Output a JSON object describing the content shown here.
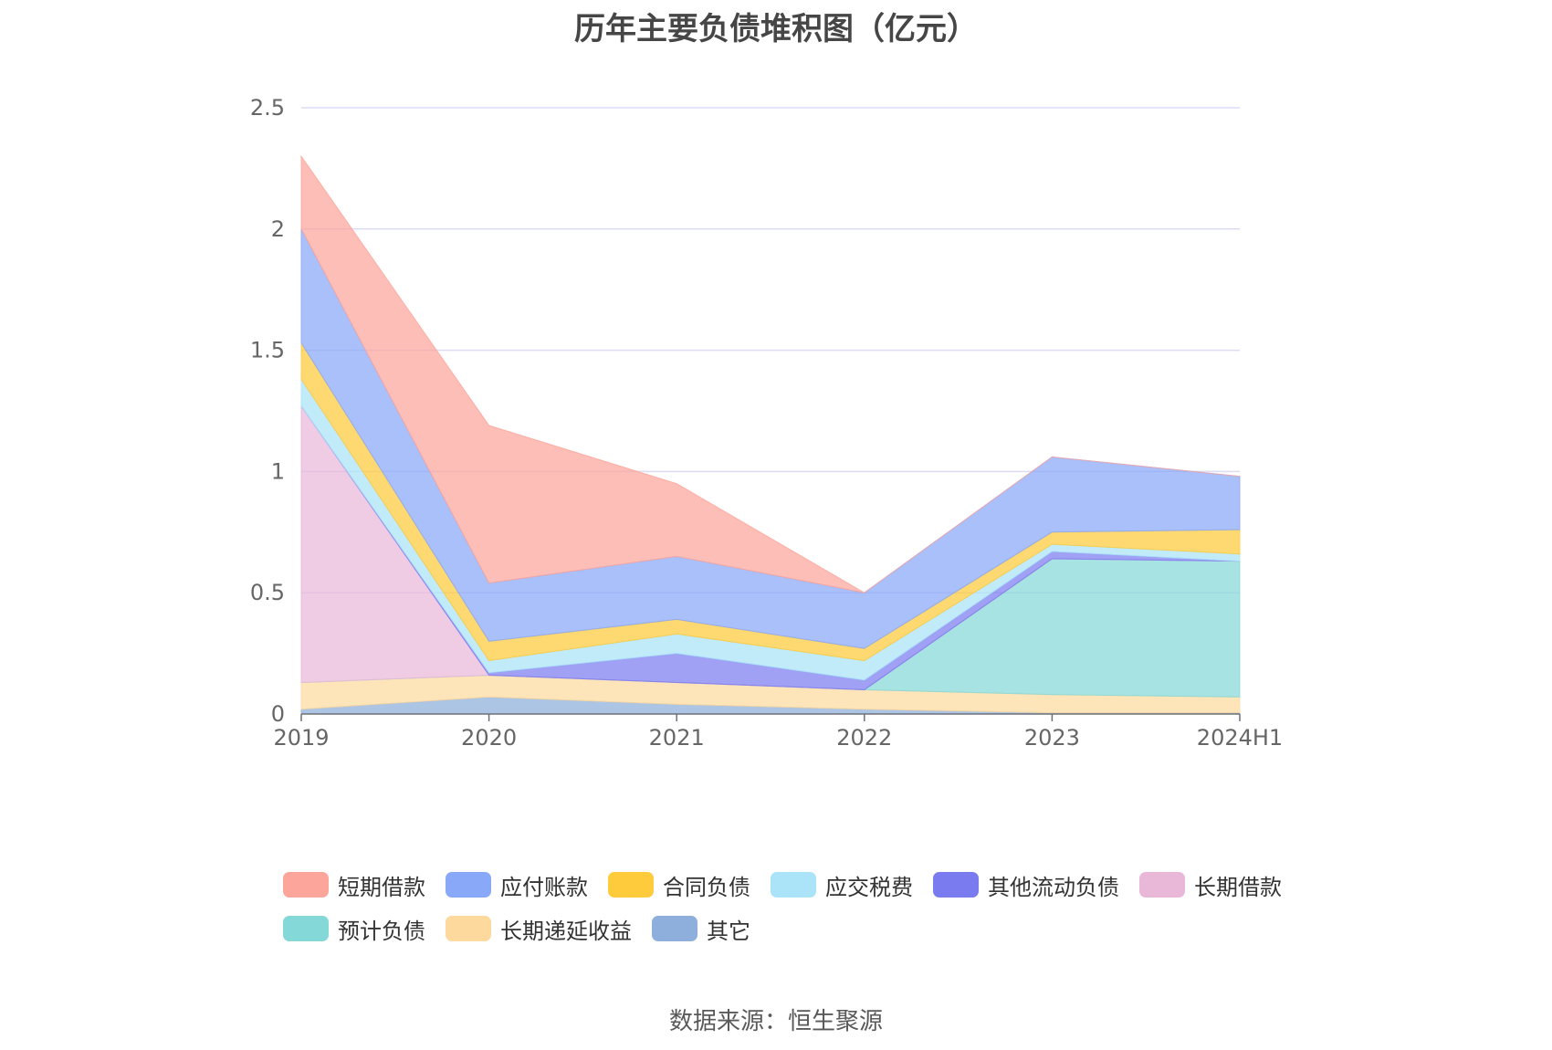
{
  "title": "历年主要负债堆积图（亿元）",
  "source": "数据来源：恒生聚源",
  "chart_data": {
    "type": "area",
    "stacked": true,
    "categories": [
      "2019",
      "2020",
      "2021",
      "2022",
      "2023",
      "2024H1"
    ],
    "ylim": [
      0,
      2.5
    ],
    "yticks": [
      "0",
      "0.5",
      "1",
      "1.5",
      "2",
      "2.5"
    ],
    "ytick_values": [
      0,
      0.5,
      1,
      1.5,
      2,
      2.5
    ],
    "grid": true,
    "legend_position": "bottom",
    "series": [
      {
        "name": "其它",
        "color": "#8eaedb",
        "values": [
          0.02,
          0.07,
          0.04,
          0.02,
          0.005,
          0.005
        ]
      },
      {
        "name": "长期递延收益",
        "color": "#fed99e",
        "values": [
          0.11,
          0.09,
          0.09,
          0.08,
          0.075,
          0.065
        ]
      },
      {
        "name": "预计负债",
        "color": "#85d8d8",
        "values": [
          0,
          0,
          0,
          0,
          0.56,
          0.56
        ]
      },
      {
        "name": "长期借款",
        "color": "#e9b8d9",
        "values": [
          1.14,
          0,
          0,
          0,
          0,
          0
        ]
      },
      {
        "name": "其他流动负债",
        "color": "#7b7bf0",
        "values": [
          0,
          0.01,
          0.12,
          0.04,
          0.03,
          0
        ]
      },
      {
        "name": "应交税费",
        "color": "#abe3f8",
        "values": [
          0.11,
          0.05,
          0.08,
          0.08,
          0.03,
          0.03
        ]
      },
      {
        "name": "合同负债",
        "color": "#fecb3c",
        "values": [
          0.15,
          0.08,
          0.06,
          0.05,
          0.05,
          0.1
        ]
      },
      {
        "name": "应付账款",
        "color": "#89a8f8",
        "values": [
          0.47,
          0.24,
          0.26,
          0.23,
          0.31,
          0.22
        ]
      },
      {
        "name": "短期借款",
        "color": "#fba59b",
        "values": [
          0.3,
          0.65,
          0.3,
          0,
          0,
          0
        ]
      }
    ],
    "legend_order": [
      "短期借款",
      "应付账款",
      "合同负债",
      "应交税费",
      "其他流动负债",
      "长期借款",
      "预计负债",
      "长期递延收益",
      "其它"
    ]
  }
}
